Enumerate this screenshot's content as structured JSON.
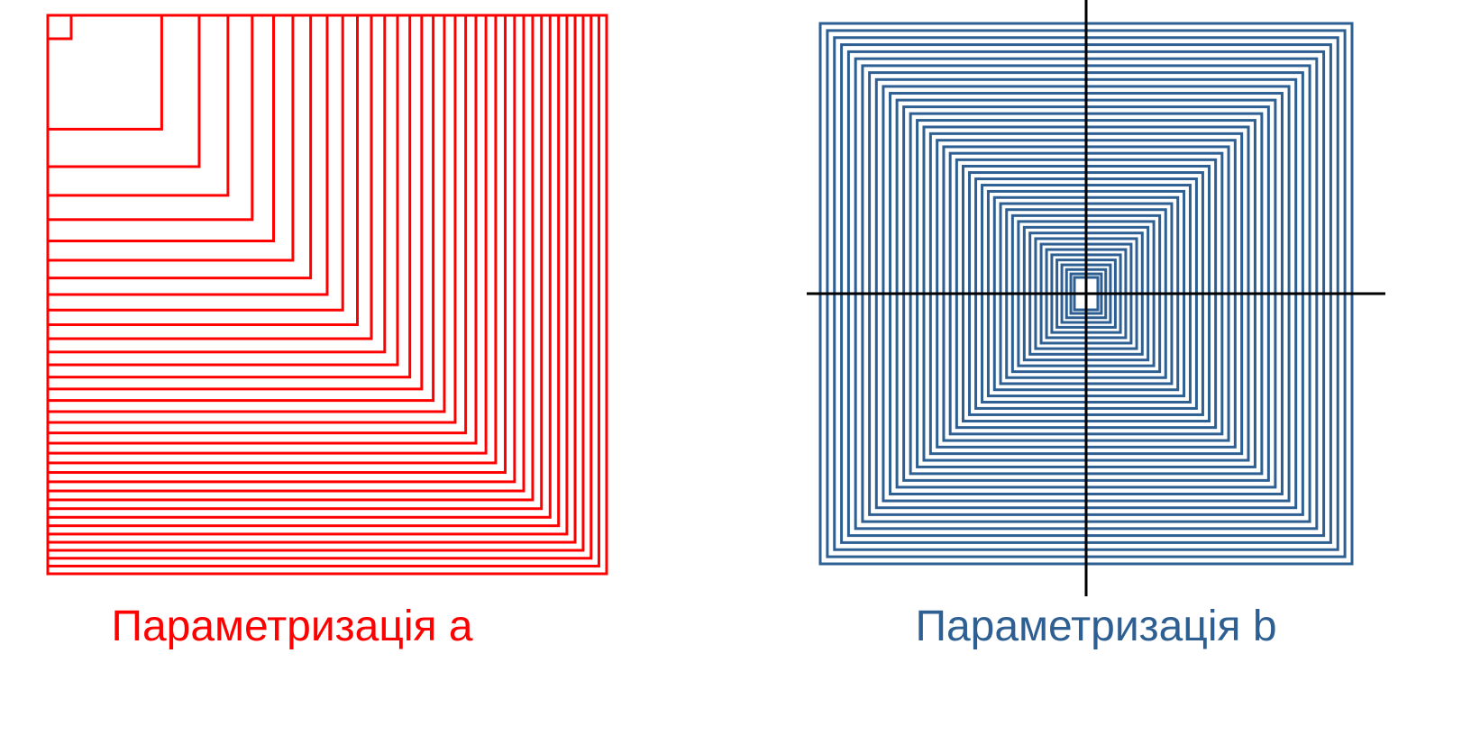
{
  "colors": {
    "panel_a": "#ff0000",
    "panel_b": "#2e5f93",
    "axes": "#000000",
    "background": "#ffffff"
  },
  "panels": [
    {
      "id": "a",
      "caption": "Параметризація a",
      "anchor": "top-left corner",
      "nested_square_count": 36,
      "axes_shown": false
    },
    {
      "id": "b",
      "caption": "Параметризація b",
      "anchor": "center",
      "nested_square_count": 42,
      "axes_shown": true
    }
  ]
}
